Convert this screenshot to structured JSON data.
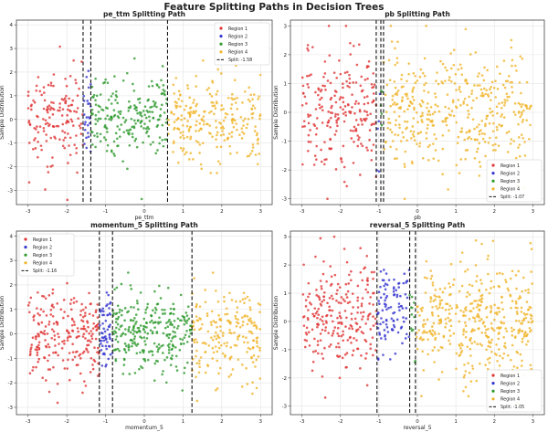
{
  "figure_title": "Feature Splitting Paths in Decision Trees",
  "chart_data": [
    {
      "type": "scatter",
      "title": "pe_ttm Splitting Path",
      "xlabel": "pe_ttm",
      "ylabel": "Sample Distribution",
      "xlim": [
        -3.3,
        3.3
      ],
      "ylim": [
        -3.6,
        4.2
      ],
      "xticks": [
        -3,
        -2,
        -1,
        0,
        1,
        2,
        3
      ],
      "yticks": [
        -3,
        -2,
        -1,
        0,
        1,
        2,
        3,
        4
      ],
      "grid": true,
      "legend_position": "top-right",
      "legend": [
        "Region 1",
        "Region 2",
        "Region 3",
        "Region 4",
        "Split: -1.58"
      ],
      "splits": [
        -1.58,
        -1.38,
        0.6
      ],
      "regions": [
        {
          "name": "Region 1",
          "color": "#e03434",
          "x_range": [
            -3.0,
            -1.58
          ],
          "count": 150,
          "y_mean": 0.1,
          "y_sd": 1.0
        },
        {
          "name": "Region 2",
          "color": "#3535d0",
          "x_range": [
            -1.58,
            -1.38
          ],
          "count": 25,
          "y_mean": 0.2,
          "y_sd": 0.8
        },
        {
          "name": "Region 3",
          "color": "#2e9a2e",
          "x_range": [
            -1.38,
            0.6
          ],
          "count": 210,
          "y_mean": 0.2,
          "y_sd": 0.85
        },
        {
          "name": "Region 4",
          "color": "#f0b429",
          "x_range": [
            0.6,
            3.0
          ],
          "count": 240,
          "y_mean": 0.0,
          "y_sd": 0.9
        }
      ]
    },
    {
      "type": "scatter",
      "title": "pb Splitting Path",
      "xlabel": "pb",
      "ylabel": "Sample Distribution",
      "xlim": [
        -3.3,
        3.3
      ],
      "ylim": [
        -3.2,
        3.2
      ],
      "xticks": [
        -3,
        -2,
        -1,
        0,
        1,
        2,
        3
      ],
      "yticks": [
        -3,
        -2,
        -1,
        0,
        1,
        2,
        3
      ],
      "grid": true,
      "legend_position": "bottom-right",
      "legend": [
        "Region 1",
        "Region 2",
        "Region 3",
        "Region 4",
        "Split: -1.07"
      ],
      "splits": [
        -1.07,
        -0.95,
        -0.88
      ],
      "regions": [
        {
          "name": "Region 1",
          "color": "#e03434",
          "x_range": [
            -3.0,
            -1.07
          ],
          "count": 220,
          "y_mean": 0.1,
          "y_sd": 1.1
        },
        {
          "name": "Region 2",
          "color": "#3535d0",
          "x_range": [
            -1.07,
            -0.95
          ],
          "count": 5,
          "y_mean": 0.0,
          "y_sd": 0.8
        },
        {
          "name": "Region 3",
          "color": "#2e9a2e",
          "x_range": [
            -0.95,
            -0.88
          ],
          "count": 5,
          "y_mean": 0.0,
          "y_sd": 0.8
        },
        {
          "name": "Region 4",
          "color": "#f0b429",
          "x_range": [
            -0.88,
            3.0
          ],
          "count": 420,
          "y_mean": 0.0,
          "y_sd": 1.0
        }
      ]
    },
    {
      "type": "scatter",
      "title": "momentum_5 Splitting Path",
      "xlabel": "momentum_5",
      "ylabel": "Sample Distribution",
      "xlim": [
        -3.3,
        3.3
      ],
      "ylim": [
        -3.3,
        4.2
      ],
      "xticks": [
        -3,
        -2,
        -1,
        0,
        1,
        2,
        3
      ],
      "yticks": [
        -3,
        -2,
        -1,
        0,
        1,
        2,
        3,
        4
      ],
      "grid": true,
      "legend_position": "top-left",
      "legend": [
        "Region 1",
        "Region 2",
        "Region 3",
        "Region 4",
        "Split: -1.16"
      ],
      "splits": [
        -1.16,
        -0.82,
        1.23
      ],
      "regions": [
        {
          "name": "Region 1",
          "color": "#e03434",
          "x_range": [
            -3.0,
            -1.16
          ],
          "count": 230,
          "y_mean": 0.0,
          "y_sd": 0.9
        },
        {
          "name": "Region 2",
          "color": "#3535d0",
          "x_range": [
            -1.16,
            -0.82
          ],
          "count": 60,
          "y_mean": 0.1,
          "y_sd": 0.7
        },
        {
          "name": "Region 3",
          "color": "#2e9a2e",
          "x_range": [
            -0.82,
            1.23
          ],
          "count": 280,
          "y_mean": 0.1,
          "y_sd": 0.75
        },
        {
          "name": "Region 4",
          "color": "#f0b429",
          "x_range": [
            1.23,
            3.0
          ],
          "count": 200,
          "y_mean": 0.0,
          "y_sd": 0.95
        }
      ]
    },
    {
      "type": "scatter",
      "title": "reversal_5 Splitting Path",
      "xlabel": "reversal_5",
      "ylabel": "Sample Distribution",
      "xlim": [
        -3.3,
        3.3
      ],
      "ylim": [
        -3.3,
        3.2
      ],
      "xticks": [
        -3,
        -2,
        -1,
        0,
        1,
        2,
        3
      ],
      "yticks": [
        -3,
        -2,
        -1,
        0,
        1,
        2,
        3
      ],
      "grid": true,
      "legend_position": "bottom-right",
      "legend": [
        "Region 1",
        "Region 2",
        "Region 3",
        "Region 4",
        "Split: -1.05"
      ],
      "splits": [
        -1.05,
        -0.2,
        -0.05
      ],
      "regions": [
        {
          "name": "Region 1",
          "color": "#e03434",
          "x_range": [
            -3.0,
            -1.05
          ],
          "count": 240,
          "y_mean": 0.2,
          "y_sd": 1.0
        },
        {
          "name": "Region 2",
          "color": "#3535d0",
          "x_range": [
            -1.05,
            -0.2
          ],
          "count": 100,
          "y_mean": 0.3,
          "y_sd": 0.8
        },
        {
          "name": "Region 3",
          "color": "#2e9a2e",
          "x_range": [
            -0.2,
            -0.05
          ],
          "count": 12,
          "y_mean": 0.0,
          "y_sd": 0.8
        },
        {
          "name": "Region 4",
          "color": "#f0b429",
          "x_range": [
            -0.05,
            3.0
          ],
          "count": 420,
          "y_mean": 0.0,
          "y_sd": 1.0
        }
      ]
    }
  ]
}
